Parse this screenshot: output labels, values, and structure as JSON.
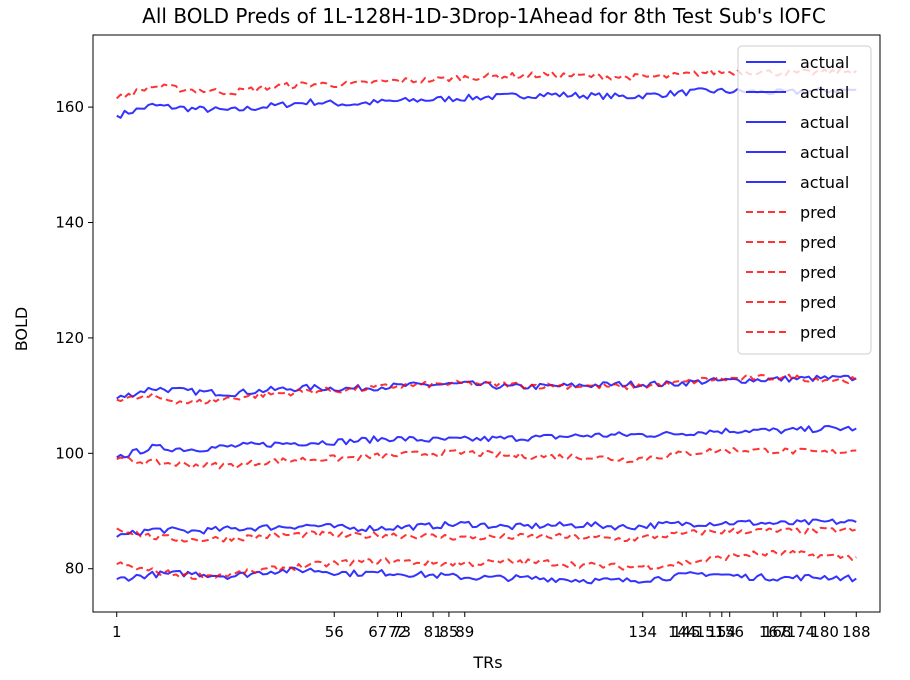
{
  "chart_data": {
    "type": "line",
    "title": "All BOLD Preds of 1L-128H-1D-3Drop-1Ahead for 8th Test Sub's lOFC",
    "xlabel": "TRs",
    "ylabel": "BOLD",
    "xlim": [
      -5,
      194
    ],
    "ylim": [
      72.5,
      172.5
    ],
    "yticks": [
      80,
      100,
      120,
      140,
      160
    ],
    "xticks": [
      1,
      56,
      67,
      72,
      73,
      81,
      85,
      89,
      134,
      144,
      145,
      151,
      154,
      156,
      167,
      168,
      174,
      180,
      188
    ],
    "xtick_labels": [
      "1",
      "56",
      "67",
      "72",
      "73",
      "81",
      "85",
      "89",
      "134",
      "144",
      "145",
      "151",
      "154",
      "156",
      "167",
      "168",
      "174",
      "180",
      "188"
    ],
    "grid": false,
    "legend_position": "top-right",
    "colors": {
      "actual": "#0000ff",
      "pred": "#ff0000"
    },
    "x_range": [
      1,
      188
    ],
    "series": [
      {
        "name": "actual",
        "style": "solid",
        "color": "#0000ff",
        "x": [
          1,
          10,
          20,
          30,
          40,
          50,
          60,
          70,
          80,
          90,
          100,
          110,
          120,
          130,
          140,
          150,
          160,
          170,
          180,
          188
        ],
        "values": [
          158.5,
          160.3,
          159.7,
          159.4,
          160.2,
          160.9,
          160.5,
          161.0,
          161.3,
          161.6,
          161.9,
          162.2,
          162.0,
          161.8,
          162.3,
          162.8,
          162.7,
          162.5,
          162.9,
          163.0
        ]
      },
      {
        "name": "actual",
        "style": "solid",
        "color": "#0000ff",
        "x": [
          1,
          10,
          20,
          30,
          40,
          50,
          60,
          70,
          80,
          90,
          100,
          110,
          120,
          130,
          140,
          150,
          160,
          170,
          180,
          188
        ],
        "values": [
          109.5,
          111.3,
          110.7,
          110.4,
          111.0,
          111.4,
          111.2,
          111.6,
          111.9,
          112.0,
          111.5,
          111.6,
          111.8,
          112.0,
          112.0,
          112.5,
          112.7,
          112.9,
          113.0,
          113.0
        ]
      },
      {
        "name": "actual",
        "style": "solid",
        "color": "#0000ff",
        "x": [
          1,
          10,
          20,
          30,
          40,
          50,
          60,
          70,
          80,
          90,
          100,
          110,
          120,
          130,
          140,
          150,
          160,
          170,
          180,
          188
        ],
        "values": [
          99.3,
          101.0,
          100.7,
          101.2,
          101.6,
          101.9,
          102.1,
          102.6,
          102.3,
          102.4,
          102.6,
          102.8,
          103.1,
          103.2,
          103.3,
          103.8,
          104.0,
          103.9,
          104.3,
          104.3
        ]
      },
      {
        "name": "actual",
        "style": "solid",
        "color": "#0000ff",
        "x": [
          1,
          10,
          20,
          30,
          40,
          50,
          60,
          70,
          80,
          90,
          100,
          110,
          120,
          130,
          140,
          150,
          160,
          170,
          180,
          188
        ],
        "values": [
          85.5,
          86.8,
          86.5,
          86.9,
          87.2,
          87.5,
          87.0,
          87.1,
          87.4,
          87.8,
          87.2,
          87.5,
          87.6,
          87.2,
          87.7,
          87.9,
          88.0,
          87.8,
          88.1,
          88.1
        ]
      },
      {
        "name": "actual",
        "style": "solid",
        "color": "#0000ff",
        "x": [
          1,
          10,
          20,
          30,
          40,
          50,
          60,
          70,
          80,
          90,
          100,
          110,
          120,
          130,
          140,
          150,
          160,
          170,
          180,
          188
        ],
        "values": [
          78.2,
          79.0,
          79.2,
          78.7,
          79.6,
          79.8,
          79.2,
          79.3,
          78.9,
          78.5,
          78.4,
          78.3,
          78.0,
          77.9,
          78.5,
          79.2,
          78.6,
          78.4,
          78.6,
          78.3
        ]
      },
      {
        "name": "pred",
        "style": "dashed",
        "color": "#ff0000",
        "x": [
          1,
          10,
          20,
          30,
          40,
          50,
          60,
          70,
          80,
          90,
          100,
          110,
          120,
          130,
          140,
          150,
          160,
          170,
          180,
          188
        ],
        "values": [
          161.5,
          163.6,
          163.0,
          162.6,
          163.5,
          164.0,
          163.9,
          164.5,
          164.7,
          165.2,
          165.4,
          165.6,
          165.4,
          165.2,
          165.3,
          166.0,
          166.2,
          165.9,
          166.0,
          166.3
        ]
      },
      {
        "name": "pred",
        "style": "dashed",
        "color": "#ff0000",
        "x": [
          1,
          10,
          20,
          30,
          40,
          50,
          60,
          70,
          80,
          90,
          100,
          110,
          120,
          130,
          140,
          150,
          160,
          170,
          180,
          188
        ],
        "values": [
          109.3,
          109.8,
          108.7,
          109.6,
          110.3,
          110.8,
          111.0,
          111.6,
          111.9,
          112.1,
          111.9,
          111.7,
          111.7,
          111.5,
          111.9,
          112.8,
          113.0,
          113.2,
          112.8,
          112.7
        ]
      },
      {
        "name": "pred",
        "style": "dashed",
        "color": "#ff0000",
        "x": [
          1,
          10,
          20,
          30,
          40,
          50,
          60,
          70,
          80,
          90,
          100,
          110,
          120,
          130,
          140,
          150,
          160,
          170,
          180,
          188
        ],
        "values": [
          99.0,
          98.4,
          98.0,
          97.9,
          98.6,
          99.0,
          99.2,
          99.6,
          100.0,
          100.1,
          99.6,
          99.5,
          99.4,
          98.9,
          99.6,
          100.4,
          100.6,
          100.4,
          100.1,
          100.5
        ]
      },
      {
        "name": "pred",
        "style": "dashed",
        "color": "#ff0000",
        "x": [
          1,
          10,
          20,
          30,
          40,
          50,
          60,
          70,
          80,
          90,
          100,
          110,
          120,
          130,
          140,
          150,
          160,
          170,
          180,
          188
        ],
        "values": [
          87.0,
          85.5,
          85.0,
          85.3,
          85.7,
          86.0,
          85.7,
          85.9,
          85.6,
          85.4,
          85.5,
          85.6,
          85.4,
          85.1,
          85.8,
          86.4,
          86.6,
          86.5,
          86.6,
          86.8
        ]
      },
      {
        "name": "pred",
        "style": "dashed",
        "color": "#ff0000",
        "x": [
          1,
          10,
          20,
          30,
          40,
          50,
          60,
          70,
          80,
          90,
          100,
          110,
          120,
          130,
          140,
          150,
          160,
          170,
          180,
          188
        ],
        "values": [
          80.8,
          79.6,
          78.7,
          79.0,
          79.9,
          80.6,
          81.1,
          81.4,
          81.0,
          80.9,
          81.2,
          81.1,
          80.6,
          80.3,
          80.6,
          81.5,
          82.5,
          82.7,
          82.2,
          82.0
        ]
      }
    ]
  }
}
